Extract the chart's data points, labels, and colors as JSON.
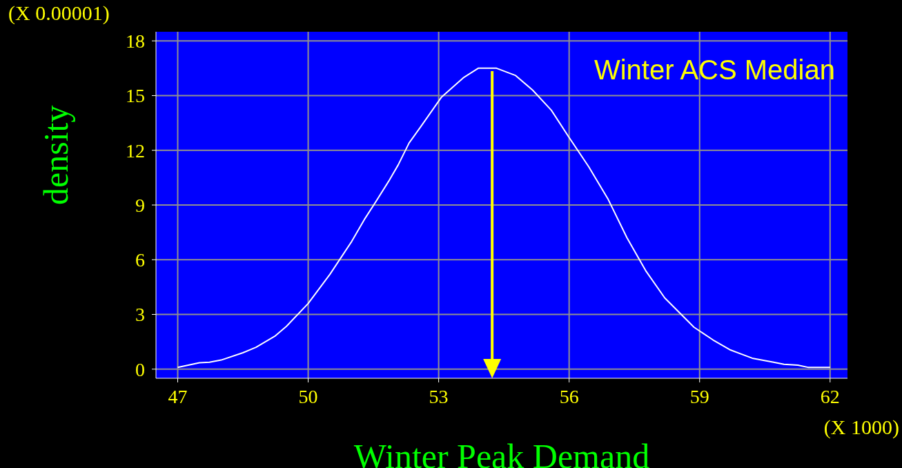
{
  "chart_data": {
    "type": "line",
    "xlabel": "Winter Peak Demand",
    "ylabel": "density",
    "x": [
      47,
      47.5,
      47.73,
      48.0,
      48.5,
      48.8,
      49.23,
      49.5,
      50.0,
      50.5,
      51.0,
      51.29,
      51.56,
      51.85,
      52.07,
      52.32,
      52.59,
      53.06,
      53.58,
      53.91,
      54.33,
      54.77,
      55.16,
      55.59,
      56.0,
      56.45,
      56.9,
      57.33,
      57.76,
      58.2,
      58.87,
      59.31,
      59.71,
      60.21,
      60.7,
      60.94,
      61.26,
      61.49,
      62
    ],
    "series": [
      {
        "color": "#ffffff",
        "values": [
          0.1,
          0.35,
          0.38,
          0.5,
          0.9,
          1.2,
          1.8,
          2.35,
          3.6,
          5.2,
          7.0,
          8.2,
          9.2,
          10.3,
          11.2,
          12.4,
          13.3,
          14.9,
          16.0,
          16.5,
          16.5,
          16.1,
          15.3,
          14.2,
          12.7,
          11.1,
          9.3,
          7.2,
          5.4,
          3.9,
          2.3,
          1.6,
          1.05,
          0.6,
          0.38,
          0.27,
          0.22,
          0.1,
          0.1
        ]
      }
    ],
    "xlim": [
      46.5,
      62.4
    ],
    "xticks": [
      47,
      50,
      53,
      56,
      59,
      62
    ],
    "ylim": [
      -0.5,
      18.5
    ],
    "yticks": [
      0,
      3,
      6,
      9,
      12,
      15,
      18
    ],
    "ref_lines": [
      {
        "axis": "x",
        "value": 54.23,
        "label": "Winter ACS Median",
        "color": "#ffff00"
      }
    ],
    "annotations": [
      "(X 0.00001)",
      "(X 1000)"
    ],
    "grid": true,
    "marker": "none",
    "line_style": "solid"
  }
}
